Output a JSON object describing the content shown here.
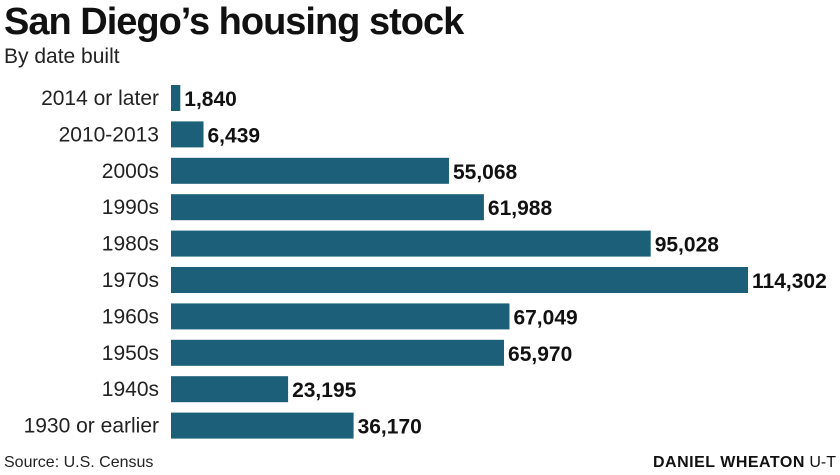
{
  "header": {
    "title": "San Diego’s housing stock",
    "subtitle": "By date built"
  },
  "footer": {
    "source": "Source: U.S. Census",
    "credit_name": "DANIEL WHEATON",
    "credit_org": "U-T"
  },
  "colors": {
    "bar": "#1b6078"
  },
  "chart_data": {
    "type": "bar",
    "orientation": "horizontal",
    "title": "San Diego’s housing stock",
    "subtitle": "By date built",
    "categories": [
      "2014 or later",
      "2010-2013",
      "2000s",
      "1990s",
      "1980s",
      "1970s",
      "1960s",
      "1950s",
      "1940s",
      "1930 or earlier"
    ],
    "values": [
      1840,
      6439,
      55068,
      61988,
      95028,
      114302,
      67049,
      65970,
      23195,
      36170
    ],
    "value_labels": [
      "1,840",
      "6,439",
      "55,068",
      "61,988",
      "95,028",
      "114,302",
      "67,049",
      "65,970",
      "23,195",
      "36,170"
    ],
    "xlim": [
      0,
      114302
    ],
    "grid": false,
    "legend": "none"
  }
}
